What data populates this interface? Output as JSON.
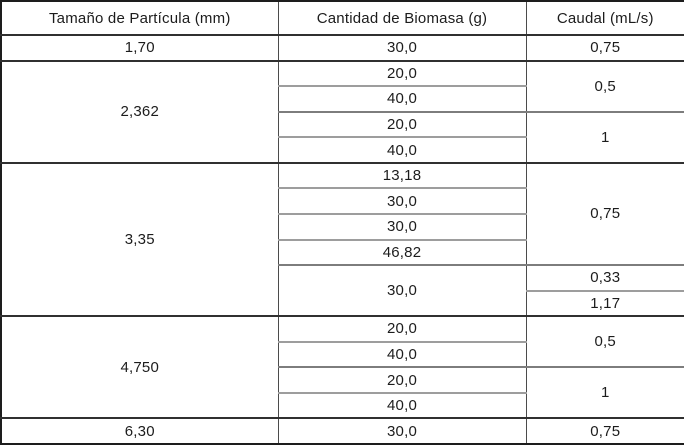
{
  "chart_data": {
    "type": "table",
    "title": "",
    "columns": [
      "Tamaño de Partícula (mm)",
      "Cantidad de Biomasa (g)",
      "Caudal (mL/s)"
    ],
    "groups": [
      {
        "particle": "1,70",
        "biomass": [
          "30,0"
        ],
        "flows": [
          "0,75"
        ]
      },
      {
        "particle": "2,362",
        "biomass": [
          "20,0",
          "40,0",
          "20,0",
          "40,0"
        ],
        "flows": [
          "0,5",
          "1"
        ]
      },
      {
        "particle": "3,35",
        "biomass": [
          "13,18",
          "30,0",
          "30,0",
          "46,82",
          "30,0"
        ],
        "flows": [
          "0,75",
          "0,33",
          "1,17"
        ]
      },
      {
        "particle": "4,750",
        "biomass": [
          "20,0",
          "40,0",
          "20,0",
          "40,0"
        ],
        "flows": [
          "0,5",
          "1"
        ]
      },
      {
        "particle": "6,30",
        "biomass": [
          "30,0"
        ],
        "flows": [
          "0,75"
        ]
      }
    ],
    "layout": {
      "grid": true,
      "legend": "none",
      "decimal_separator": "comma"
    }
  },
  "colors": {
    "background": "#ffffff",
    "text": "#1c1c1c",
    "border_outer": "#1d1d1d",
    "border_group": "#303030",
    "border_inner_gray": "#9d9d9d"
  }
}
